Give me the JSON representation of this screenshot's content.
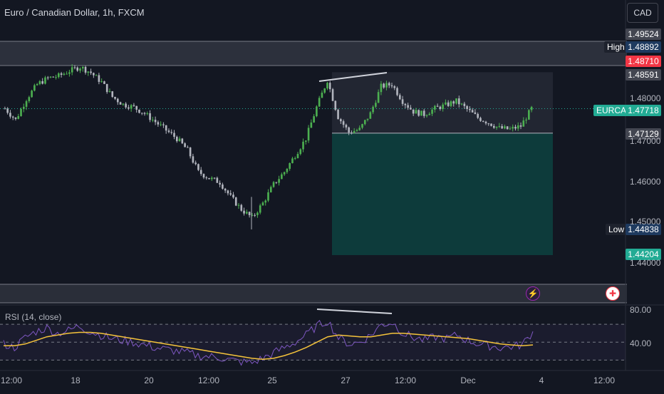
{
  "header": {
    "title": "Euro / Canadian Dollar, 1h, FXCM",
    "currency_button": "CAD"
  },
  "price_labels": {
    "top": "1.49524",
    "high_label": "High",
    "high": "1.48892",
    "red_level": "1.48710",
    "grey_level": "1.48591",
    "symbol": "EURCAD",
    "current": "1.47718",
    "entry": "1.47129",
    "low_label": "Low",
    "low": "1.44838",
    "target": "1.44204"
  },
  "price_axis_ticks": [
    "1.48000",
    "1.47000",
    "1.46000",
    "1.45000",
    "1.44000"
  ],
  "rsi": {
    "label": "RSI (14, close)",
    "axis_ticks": [
      "80.00",
      "40.00"
    ]
  },
  "time_axis": [
    "12:00",
    "18",
    "20",
    "12:00",
    "25",
    "27",
    "12:00",
    "Dec",
    "4",
    "12:00"
  ],
  "events": {
    "flash_icon": "lightning-icon",
    "flag_icon": "canada-flag-icon"
  },
  "colors": {
    "background": "#131722",
    "up": "#4caf50",
    "down": "#b2b5be",
    "rsi_line": "#7e57c2",
    "rsi_ma": "#f5c33b",
    "target_zone": "#0d3b3b",
    "stop_zone": "#2a2e39",
    "red_tag": "#f23645",
    "green_tag": "#22ab94"
  },
  "chart_data": [
    {
      "type": "candlestick",
      "title": "Euro / Canadian Dollar, 1h, FXCM",
      "x": [
        "12:00",
        "18",
        "20",
        "12:00",
        "25",
        "27",
        "12:00",
        "Dec",
        "4"
      ],
      "close_path": [
        1.4772,
        1.4745,
        1.4795,
        1.483,
        1.4845,
        1.485,
        1.4862,
        1.4872,
        1.4858,
        1.4835,
        1.48,
        1.4782,
        1.4775,
        1.476,
        1.474,
        1.472,
        1.47,
        1.4672,
        1.462,
        1.4605,
        1.4595,
        1.456,
        1.453,
        1.451,
        1.4545,
        1.459,
        1.462,
        1.466,
        1.47,
        1.4775,
        1.484,
        1.4752,
        1.4715,
        1.4722,
        1.476,
        1.4825,
        1.483,
        1.479,
        1.4765,
        1.4758,
        1.4772,
        1.478,
        1.479,
        1.477,
        1.475,
        1.4738,
        1.4725,
        1.4722,
        1.473,
        1.4772
      ],
      "price_range": [
        1.44,
        1.4952
      ],
      "high": 1.48892,
      "low": 1.44838,
      "last": 1.47718,
      "position_box": {
        "entry": 1.47129,
        "stop": 1.48591,
        "target": 1.44204
      }
    },
    {
      "type": "line",
      "title": "RSI (14, close)",
      "ylim": [
        20,
        90
      ],
      "series": [
        {
          "values": [
            48,
            44,
            55,
            62,
            66,
            60,
            63,
            68,
            62,
            58,
            54,
            52,
            50,
            47,
            44,
            42,
            40,
            38,
            35,
            34,
            33,
            30,
            28,
            27,
            32,
            38,
            44,
            50,
            58,
            68,
            74,
            55,
            48,
            50,
            58,
            70,
            72,
            60,
            55,
            52,
            56,
            54,
            58,
            52,
            48,
            46,
            44,
            45,
            47,
            62
          ]
        },
        {
          "values": [
            46,
            46,
            48,
            52,
            56,
            58,
            60,
            61,
            61,
            60,
            58,
            56,
            54,
            52,
            50,
            48,
            46,
            44,
            42,
            40,
            38,
            36,
            34,
            32,
            31,
            32,
            35,
            39,
            44,
            50,
            56,
            58,
            57,
            56,
            56,
            58,
            60,
            60,
            59,
            58,
            57,
            56,
            55,
            54,
            52,
            50,
            48,
            47,
            46,
            47
          ]
        }
      ]
    }
  ]
}
